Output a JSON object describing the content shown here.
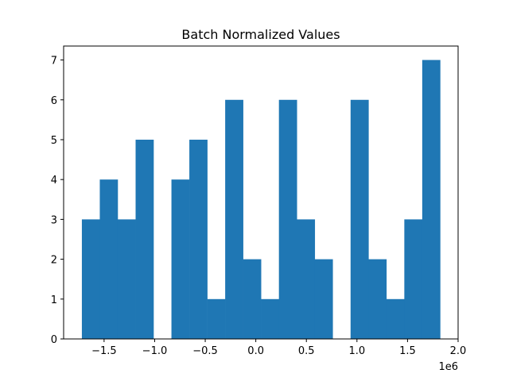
{
  "chart_data": {
    "type": "bar",
    "title": "Batch Normalized Values",
    "xlabel": "",
    "ylabel": "",
    "x_offset_label": "1e6",
    "xlim": [
      -1.9,
      2.0
    ],
    "ylim": [
      0,
      7.35
    ],
    "grid": false,
    "legend": "none",
    "bar_color": "#1f77b4",
    "x_ticks": [
      -1.5,
      -1.0,
      -0.5,
      0.0,
      0.5,
      1.0,
      1.5,
      2.0
    ],
    "x_tick_labels": [
      "−1.5",
      "−1.0",
      "−0.5",
      "0.0",
      "0.5",
      "1.0",
      "1.5",
      "2.0"
    ],
    "y_ticks": [
      0,
      1,
      2,
      3,
      4,
      5,
      6,
      7
    ],
    "y_tick_labels": [
      "0",
      "1",
      "2",
      "3",
      "4",
      "5",
      "6",
      "7"
    ],
    "bins": {
      "start": -1.7196,
      "width": 0.1771,
      "counts": [
        3,
        4,
        3,
        5,
        0,
        4,
        5,
        1,
        6,
        2,
        1,
        6,
        3,
        2,
        0,
        6,
        2,
        1,
        3,
        7
      ]
    }
  }
}
